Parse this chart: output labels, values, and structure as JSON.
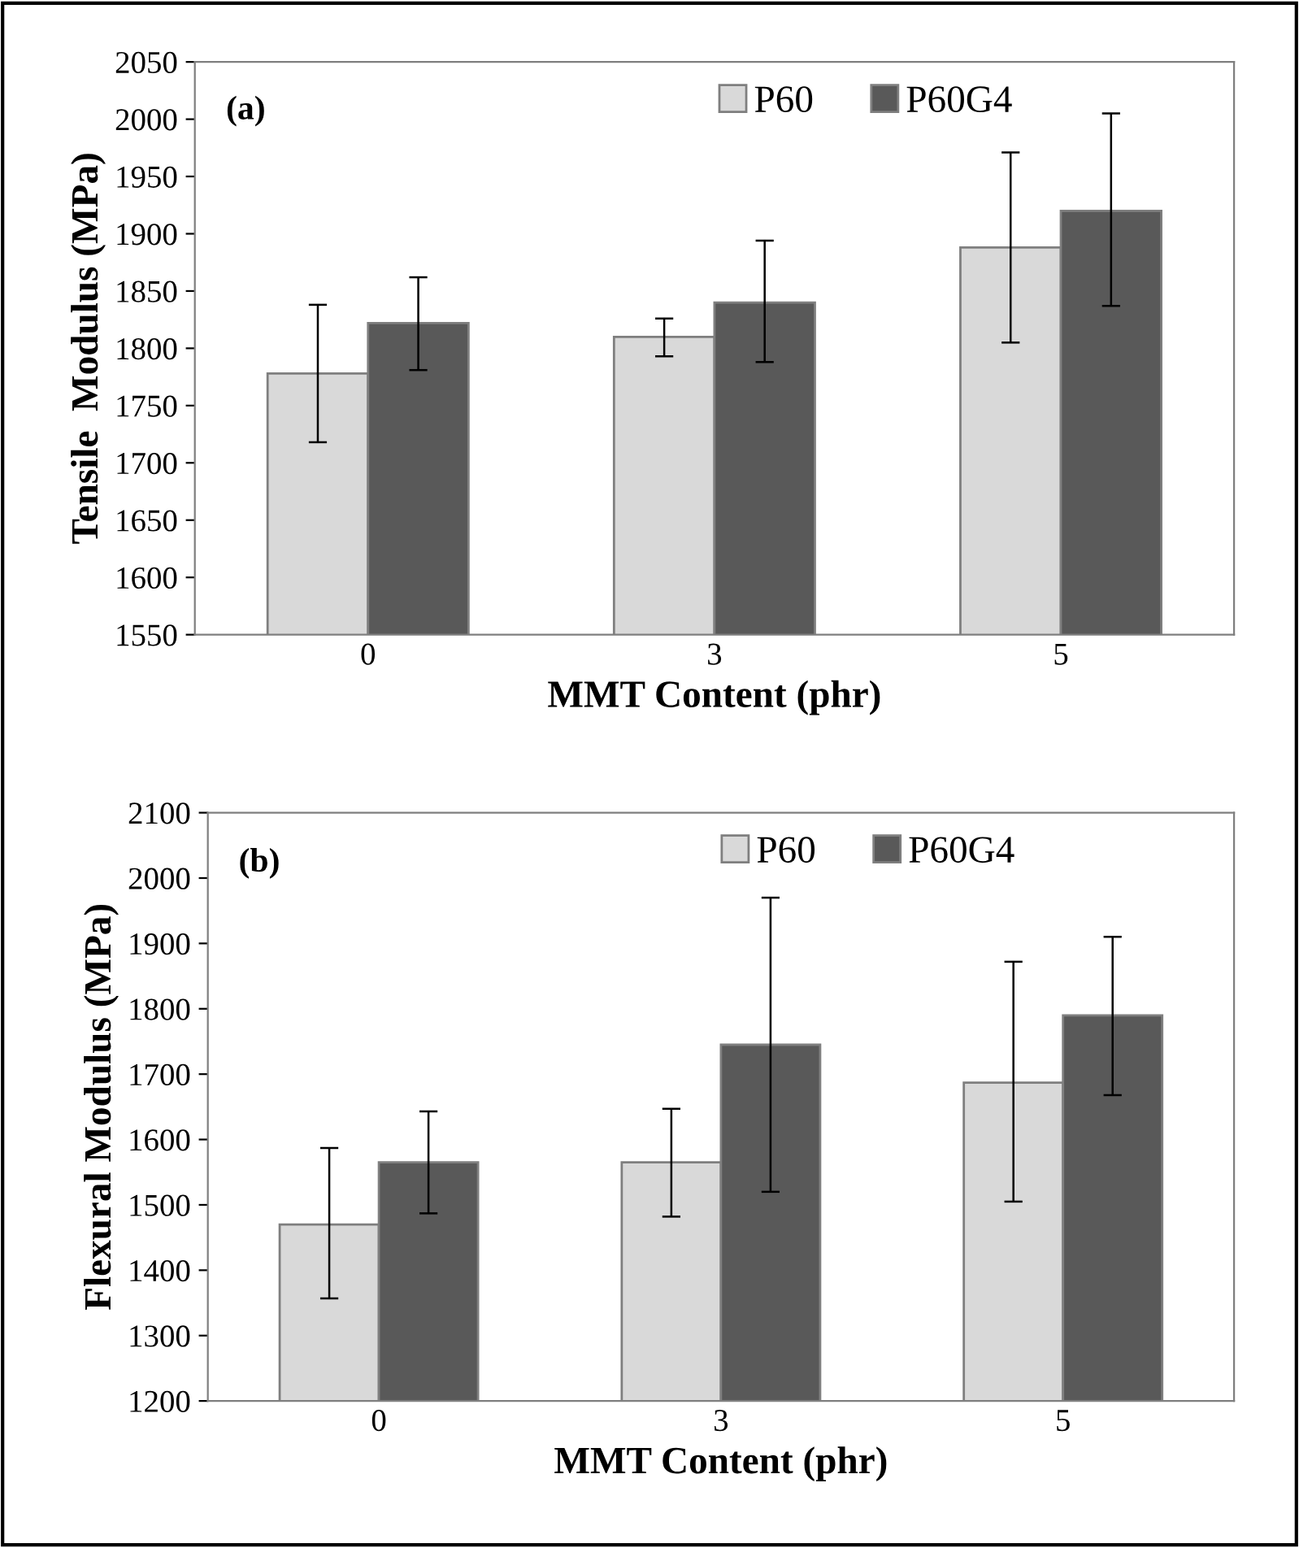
{
  "chart_data": [
    {
      "type": "bar",
      "ylabel": "Tensile  Modulus (MPa)",
      "xlabel": "MMT Content (phr)",
      "annotations": [
        "(a)"
      ],
      "categories": [
        "0",
        "3",
        "5"
      ],
      "ylim": [
        1550,
        2050
      ],
      "yticks": [
        1550,
        1600,
        1650,
        1700,
        1750,
        1800,
        1850,
        1900,
        1950,
        2000,
        2050
      ],
      "legend": "top right",
      "grid": false,
      "series": [
        {
          "name": "P60",
          "color": "#d9d9d9",
          "values": [
            1778,
            1810,
            1888
          ],
          "errors": [
            [
              1718,
              1838
            ],
            [
              1793,
              1826
            ],
            [
              1805,
              1971
            ]
          ]
        },
        {
          "name": "P60G4",
          "color": "#595959",
          "values": [
            1822,
            1840,
            1920
          ],
          "errors": [
            [
              1781,
              1862
            ],
            [
              1788,
              1894
            ],
            [
              1837,
              2005
            ]
          ]
        }
      ]
    },
    {
      "type": "bar",
      "ylabel": "Flexural Modulus (MPa)",
      "xlabel": "MMT Content (phr)",
      "annotations": [
        "(b)"
      ],
      "categories": [
        "0",
        "3",
        "5"
      ],
      "ylim": [
        1200,
        2100
      ],
      "yticks": [
        1200,
        1300,
        1400,
        1500,
        1600,
        1700,
        1800,
        1900,
        2000,
        2100
      ],
      "legend": "top right",
      "grid": false,
      "series": [
        {
          "name": "P60",
          "color": "#d9d9d9",
          "values": [
            1470,
            1565,
            1687
          ],
          "errors": [
            [
              1357,
              1587
            ],
            [
              1482,
              1647
            ],
            [
              1505,
              1872
            ]
          ]
        },
        {
          "name": "P60G4",
          "color": "#595959",
          "values": [
            1565,
            1745,
            1790
          ],
          "errors": [
            [
              1487,
              1643
            ],
            [
              1520,
              1970
            ],
            [
              1668,
              1910
            ]
          ]
        }
      ]
    }
  ]
}
